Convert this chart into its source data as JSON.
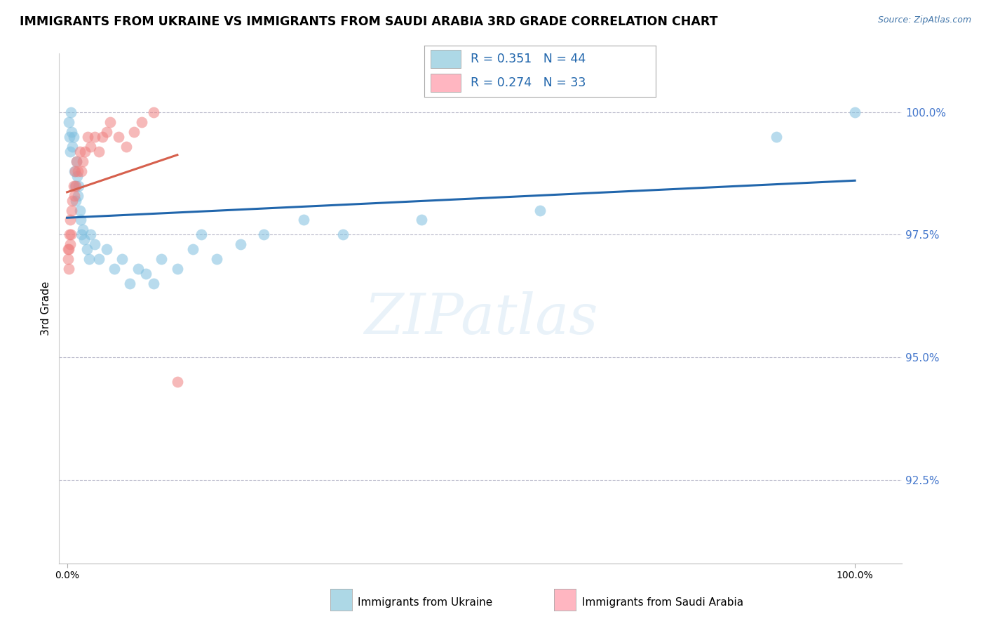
{
  "title": "IMMIGRANTS FROM UKRAINE VS IMMIGRANTS FROM SAUDI ARABIA 3RD GRADE CORRELATION CHART",
  "source": "Source: ZipAtlas.com",
  "R_ukraine": 0.351,
  "N_ukraine": 44,
  "R_saudi": 0.274,
  "N_saudi": 33,
  "color_ukraine": "#7fbfdf",
  "color_saudi": "#f08080",
  "color_ukraine_line": "#2166ac",
  "color_saudi_line": "#d6604d",
  "yticks": [
    100.0,
    97.5,
    95.0,
    92.5
  ],
  "ylim": [
    90.8,
    101.2
  ],
  "xlim": [
    -1.0,
    106.0
  ],
  "ylabel": "3rd Grade",
  "watermark_text": "ZIPatlas",
  "legend_color_ukraine": "#add8e6",
  "legend_color_saudi": "#ffb6c1",
  "ukraine_x": [
    0.2,
    0.3,
    0.4,
    0.5,
    0.6,
    0.7,
    0.8,
    0.9,
    1.0,
    1.1,
    1.2,
    1.3,
    1.4,
    1.5,
    1.6,
    1.7,
    1.8,
    2.0,
    2.2,
    2.5,
    2.8,
    3.0,
    3.5,
    4.0,
    5.0,
    6.0,
    7.0,
    8.0,
    9.0,
    10.0,
    11.0,
    12.0,
    14.0,
    16.0,
    17.0,
    19.0,
    22.0,
    25.0,
    30.0,
    35.0,
    45.0,
    60.0,
    90.0,
    100.0
  ],
  "ukraine_y": [
    99.8,
    99.5,
    99.2,
    100.0,
    99.6,
    99.3,
    99.5,
    98.8,
    98.5,
    98.2,
    99.0,
    98.7,
    98.3,
    98.5,
    98.0,
    97.8,
    97.5,
    97.6,
    97.4,
    97.2,
    97.0,
    97.5,
    97.3,
    97.0,
    97.2,
    96.8,
    97.0,
    96.5,
    96.8,
    96.7,
    96.5,
    97.0,
    96.8,
    97.2,
    97.5,
    97.0,
    97.3,
    97.5,
    97.8,
    97.5,
    97.8,
    98.0,
    99.5,
    100.0
  ],
  "saudi_x": [
    0.1,
    0.15,
    0.2,
    0.25,
    0.3,
    0.35,
    0.4,
    0.5,
    0.6,
    0.7,
    0.8,
    0.9,
    1.0,
    1.1,
    1.2,
    1.4,
    1.6,
    1.8,
    2.0,
    2.3,
    2.6,
    3.0,
    3.5,
    4.0,
    4.5,
    5.0,
    5.5,
    6.5,
    7.5,
    8.5,
    9.5,
    11.0,
    14.0
  ],
  "saudi_y": [
    97.2,
    97.0,
    96.8,
    97.2,
    97.5,
    97.3,
    97.8,
    97.5,
    98.0,
    98.2,
    98.5,
    98.3,
    98.8,
    98.5,
    99.0,
    98.8,
    99.2,
    98.8,
    99.0,
    99.2,
    99.5,
    99.3,
    99.5,
    99.2,
    99.5,
    99.6,
    99.8,
    99.5,
    99.3,
    99.6,
    99.8,
    100.0,
    94.5
  ]
}
